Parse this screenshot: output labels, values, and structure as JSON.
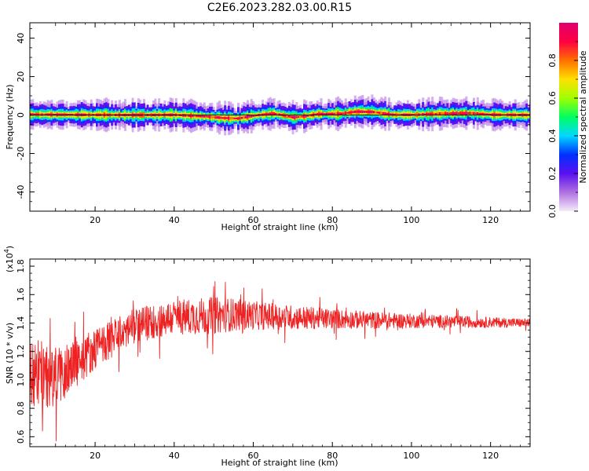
{
  "title": "C2E6.2023.282.03.00.R15",
  "chart_data": [
    {
      "type": "heatmap",
      "xlabel": "Height of straight line (km)",
      "ylabel": "Frequency (Hz)",
      "xlim": [
        3.5,
        130
      ],
      "ylim": [
        -50,
        48
      ],
      "xticks": [
        20,
        40,
        60,
        80,
        100,
        120
      ],
      "yticks": [
        40,
        20,
        0,
        -20,
        -40
      ],
      "colorbar": {
        "label": "Normalized spectral amplitude",
        "range": [
          0,
          1
        ],
        "ticks": [
          "0.0",
          "0.2",
          "0.4",
          "0.6",
          "0.8"
        ],
        "colormap": [
          "#f4ecfb",
          "#b070e0",
          "#5a10f0",
          "#0030ff",
          "#00d8ff",
          "#00ff60",
          "#a0ff00",
          "#ffe000",
          "#ff7000",
          "#ff0040",
          "#e00070"
        ]
      },
      "band": {
        "center_offset_hz": [
          [
            4,
            0.3
          ],
          [
            10,
            0.2
          ],
          [
            20,
            0.1
          ],
          [
            30,
            0.0
          ],
          [
            40,
            0.1
          ],
          [
            48,
            -0.8
          ],
          [
            52,
            -1.5
          ],
          [
            56,
            -1.8
          ],
          [
            60,
            -0.3
          ],
          [
            65,
            0.8
          ],
          [
            70,
            -1.2
          ],
          [
            73,
            -0.6
          ],
          [
            76,
            0.5
          ],
          [
            82,
            0.7
          ],
          [
            86,
            1.8
          ],
          [
            90,
            1.6
          ],
          [
            95,
            0.2
          ],
          [
            100,
            0.1
          ],
          [
            108,
            0.8
          ],
          [
            115,
            1.0
          ],
          [
            120,
            0.2
          ],
          [
            130,
            0.0
          ]
        ],
        "peak_frequency_hz": 0,
        "approx_halfwidth_hz": 2.5
      }
    },
    {
      "type": "line",
      "xlabel": "Height of straight line (km)",
      "ylabel": "SNR (10 * v/v)",
      "y_multiplier_label": "(x10",
      "y_multiplier_exp": "4",
      "xlim": [
        3.5,
        130
      ],
      "ylim": [
        0.53,
        1.85
      ],
      "xticks": [
        20,
        40,
        60,
        80,
        100,
        120
      ],
      "yticks": [
        "0.6",
        "0.8",
        "1.0",
        "1.2",
        "1.4",
        "1.6",
        "1.8"
      ],
      "line_color": "#ee2222",
      "series": [
        {
          "values": {
            "x_start": 3.5,
            "x_end": 130,
            "mean_trend": [
              [
                3.5,
                1.05
              ],
              [
                10,
                1.02
              ],
              [
                15,
                1.12
              ],
              [
                20,
                1.22
              ],
              [
                30,
                1.38
              ],
              [
                40,
                1.44
              ],
              [
                55,
                1.46
              ],
              [
                70,
                1.44
              ],
              [
                90,
                1.42
              ],
              [
                110,
                1.41
              ],
              [
                130,
                1.4
              ]
            ],
            "noise_amplitude": [
              [
                3.5,
                0.25
              ],
              [
                10,
                0.22
              ],
              [
                20,
                0.14
              ],
              [
                30,
                0.12
              ],
              [
                50,
                0.13
              ],
              [
                60,
                0.1
              ],
              [
                80,
                0.07
              ],
              [
                100,
                0.05
              ],
              [
                130,
                0.03
              ]
            ]
          }
        }
      ]
    }
  ]
}
